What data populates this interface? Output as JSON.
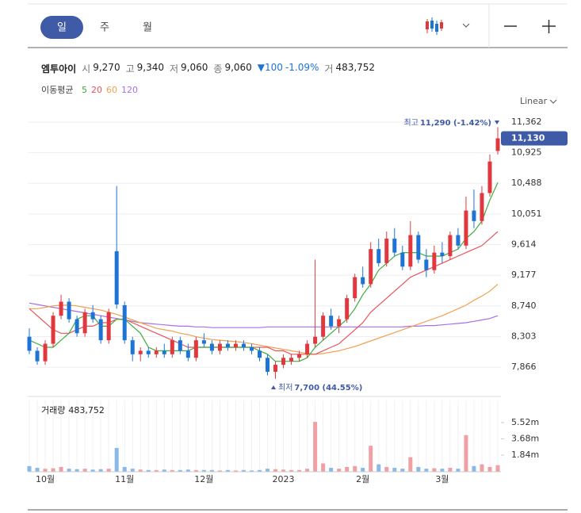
{
  "toolbar": {
    "tabs": [
      "일",
      "주",
      "월"
    ]
  },
  "info": {
    "name": "엠투아이",
    "open_label": "시",
    "open": "9,270",
    "high_label": "고",
    "high": "9,340",
    "low_label": "저",
    "low": "9,060",
    "close_label": "종",
    "close": "9,060",
    "change": "▼100",
    "change_pct": "-1.09%",
    "volume_label": "거",
    "volume": "483,752"
  },
  "chart_data": [
    {
      "type": "candlestick",
      "legend_title": "이동평균",
      "scale_label": "Linear",
      "categories": [
        null,
        null,
        "10월",
        null,
        null,
        null,
        null,
        null,
        null,
        null,
        null,
        null,
        "11월",
        null,
        null,
        null,
        null,
        null,
        null,
        null,
        null,
        null,
        "12월",
        null,
        null,
        null,
        null,
        null,
        null,
        null,
        null,
        null,
        "2023",
        null,
        null,
        null,
        null,
        null,
        null,
        null,
        null,
        null,
        "2월",
        null,
        null,
        null,
        null,
        null,
        null,
        null,
        null,
        null,
        "3월",
        null,
        null,
        null,
        null,
        null,
        null,
        null
      ],
      "open": [
        8300,
        8100,
        7950,
        8200,
        8600,
        8800,
        8550,
        8350,
        8650,
        8550,
        8250,
        9520,
        8750,
        8250,
        8050,
        8100,
        8050,
        8100,
        8050,
        8250,
        8100,
        8000,
        8250,
        8200,
        8100,
        8200,
        8150,
        8200,
        8150,
        8100,
        8000,
        7800,
        7900,
        7950,
        8000,
        8050,
        8200,
        8300,
        8600,
        8450,
        8550,
        8850,
        9150,
        9050,
        9550,
        9350,
        9700,
        9500,
        9300,
        9750,
        9400,
        9250,
        9500,
        9450,
        9750,
        9600,
        10100,
        9950,
        10350,
        10950
      ],
      "high": [
        8420,
        8150,
        8250,
        8650,
        8900,
        8850,
        8600,
        8700,
        8750,
        8600,
        8700,
        10450,
        8800,
        8300,
        8150,
        8150,
        8150,
        8200,
        8300,
        8300,
        8200,
        8300,
        8350,
        8250,
        8250,
        8250,
        8250,
        8250,
        8200,
        8150,
        8050,
        7950,
        8050,
        8050,
        8100,
        8250,
        9400,
        8650,
        8700,
        8600,
        8900,
        9200,
        9300,
        9650,
        9700,
        9800,
        9850,
        9600,
        9950,
        9800,
        9550,
        9600,
        9650,
        9800,
        9850,
        10300,
        10400,
        10450,
        10900,
        11290
      ],
      "low": [
        8050,
        7900,
        7900,
        8150,
        8550,
        8500,
        8300,
        8300,
        8500,
        8200,
        8200,
        8700,
        8200,
        7950,
        7950,
        8000,
        8000,
        8000,
        8000,
        8050,
        7950,
        7950,
        8150,
        8050,
        8050,
        8100,
        8100,
        8100,
        8050,
        7950,
        7750,
        7700,
        7850,
        7900,
        7950,
        8000,
        8150,
        8250,
        8400,
        8350,
        8500,
        8800,
        9000,
        9000,
        9300,
        9300,
        9450,
        9250,
        9250,
        9350,
        9150,
        9200,
        9350,
        9400,
        9550,
        9550,
        9850,
        9900,
        10300,
        10900
      ],
      "close": [
        8100,
        7950,
        8200,
        8600,
        8800,
        8550,
        8350,
        8650,
        8550,
        8250,
        8650,
        8760,
        8250,
        8050,
        8100,
        8050,
        8100,
        8050,
        8250,
        8100,
        8000,
        8250,
        8200,
        8100,
        8200,
        8150,
        8200,
        8150,
        8100,
        8000,
        7800,
        7900,
        8000,
        8000,
        8050,
        8200,
        8300,
        8600,
        8450,
        8550,
        8850,
        9150,
        9050,
        9550,
        9350,
        9700,
        9500,
        9300,
        9750,
        9400,
        9250,
        9500,
        9450,
        9750,
        9600,
        10100,
        9950,
        10350,
        10800,
        11130
      ],
      "up_color": "#e0383e",
      "down_color": "#1e74d4",
      "ylim": [
        7505,
        11520
      ],
      "yticks": [
        {
          "value": 7866,
          "label": "7,866"
        },
        {
          "value": 8303,
          "label": "8,303"
        },
        {
          "value": 8740,
          "label": "8,740"
        },
        {
          "value": 9177,
          "label": "9,177"
        },
        {
          "value": 9614,
          "label": "9,614"
        },
        {
          "value": 10051,
          "label": "10,051"
        },
        {
          "value": 10488,
          "label": "10,488"
        },
        {
          "value": 10925,
          "label": "10,925"
        },
        {
          "value": 11362,
          "label": "11,362"
        }
      ],
      "grid": true,
      "last_price": {
        "value": 11130,
        "label": "11,130"
      },
      "max_annotation": {
        "label": "최고",
        "text": "11,290 (-1.42%)"
      },
      "min_annotation": {
        "label": "최저",
        "text": "7,700 (44.55%)"
      },
      "series": [
        {
          "name": "5",
          "color": "#3cae3c",
          "values": [
            8250,
            8200,
            8150,
            8150,
            8250,
            8350,
            8550,
            8600,
            8600,
            8450,
            8450,
            8550,
            8550,
            8450,
            8350,
            8150,
            8100,
            8100,
            8100,
            8100,
            8100,
            8150,
            8150,
            8150,
            8150,
            8150,
            8150,
            8150,
            8150,
            8100,
            8050,
            7950,
            7950,
            7950,
            7950,
            8000,
            8150,
            8250,
            8350,
            8450,
            8550,
            8700,
            8900,
            9050,
            9250,
            9350,
            9450,
            9500,
            9500,
            9500,
            9450,
            9450,
            9450,
            9500,
            9550,
            9700,
            9800,
            9950,
            10250,
            10500
          ]
        },
        {
          "name": "20",
          "color": "#e9545a",
          "values": [
            8700,
            8600,
            8500,
            8400,
            8350,
            8350,
            8400,
            8450,
            8450,
            8500,
            8500,
            8550,
            8550,
            8500,
            8450,
            8400,
            8350,
            8300,
            8250,
            8200,
            8150,
            8150,
            8150,
            8150,
            8150,
            8150,
            8150,
            8150,
            8150,
            8150,
            8150,
            8100,
            8100,
            8050,
            8050,
            8050,
            8050,
            8100,
            8150,
            8200,
            8300,
            8400,
            8500,
            8650,
            8750,
            8850,
            8950,
            9050,
            9150,
            9200,
            9250,
            9300,
            9350,
            9400,
            9450,
            9500,
            9550,
            9600,
            9700,
            9800
          ]
        },
        {
          "name": "60",
          "color": "#f0a050",
          "values": [
            8700,
            8700,
            8720,
            8740,
            8750,
            8750,
            8740,
            8720,
            8700,
            8680,
            8650,
            8620,
            8580,
            8540,
            8500,
            8460,
            8420,
            8400,
            8380,
            8350,
            8330,
            8300,
            8280,
            8260,
            8250,
            8240,
            8230,
            8220,
            8200,
            8180,
            8160,
            8140,
            8120,
            8100,
            8080,
            8060,
            8050,
            8060,
            8080,
            8100,
            8130,
            8160,
            8200,
            8240,
            8280,
            8320,
            8360,
            8400,
            8440,
            8480,
            8520,
            8560,
            8600,
            8650,
            8700,
            8750,
            8820,
            8880,
            8950,
            9050
          ]
        },
        {
          "name": "120",
          "color": "#a86ee8",
          "values": [
            8780,
            8760,
            8740,
            8720,
            8700,
            8680,
            8660,
            8640,
            8620,
            8600,
            8580,
            8560,
            8540,
            8520,
            8500,
            8490,
            8480,
            8470,
            8460,
            8450,
            8450,
            8440,
            8440,
            8430,
            8430,
            8430,
            8430,
            8430,
            8430,
            8430,
            8440,
            8440,
            8440,
            8440,
            8440,
            8440,
            8440,
            8440,
            8440,
            8440,
            8440,
            8440,
            8440,
            8440,
            8440,
            8440,
            8440,
            8440,
            8450,
            8450,
            8460,
            8460,
            8470,
            8480,
            8490,
            8500,
            8520,
            8540,
            8560,
            8600
          ]
        }
      ]
    },
    {
      "type": "bar",
      "title": "거래량",
      "value_label": "483,752",
      "values": [
        600000,
        400000,
        300000,
        350000,
        500000,
        300000,
        250000,
        300000,
        200000,
        250000,
        300000,
        2650000,
        500000,
        300000,
        200000,
        150000,
        150000,
        200000,
        150000,
        150000,
        200000,
        150000,
        150000,
        150000,
        100000,
        150000,
        100000,
        150000,
        100000,
        150000,
        300000,
        250000,
        200000,
        150000,
        150000,
        300000,
        5600000,
        900000,
        400000,
        300000,
        500000,
        600000,
        400000,
        2900000,
        800000,
        500000,
        400000,
        300000,
        1600000,
        500000,
        300000,
        350000,
        300000,
        400000,
        300000,
        4100000,
        600000,
        800000,
        500000,
        700000
      ],
      "ylim": [
        0,
        8030000
      ],
      "yticks": [
        {
          "value": 1840000,
          "label": "1.84m"
        },
        {
          "value": 3680000,
          "label": "3.68m"
        },
        {
          "value": 5520000,
          "label": "5.52m"
        }
      ]
    }
  ]
}
